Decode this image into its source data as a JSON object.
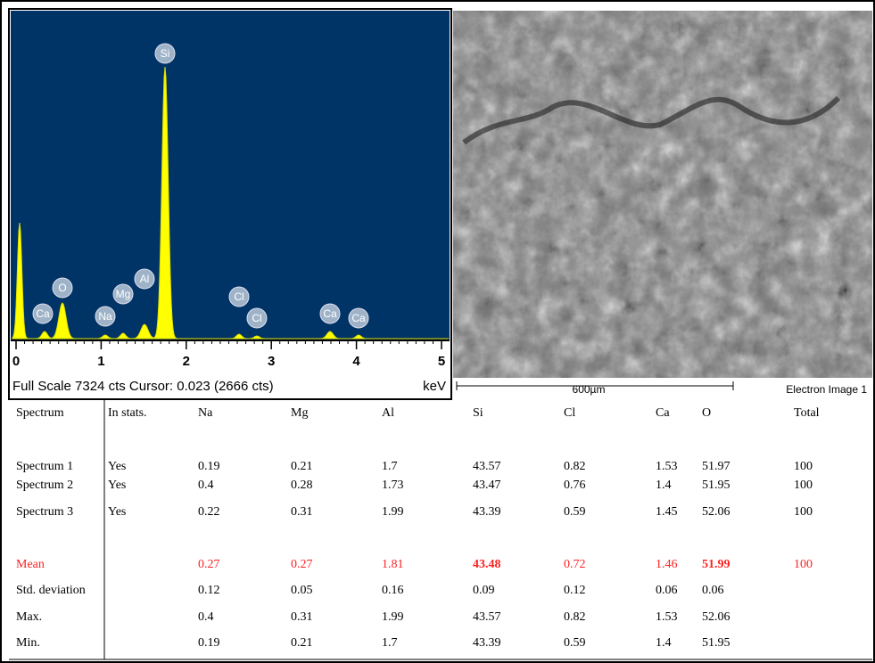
{
  "spectrum": {
    "peak_labels": [
      "Si",
      "O",
      "Ca",
      "Na",
      "Mg",
      "Al",
      "Cl",
      "Cl",
      "Ca",
      "Ca"
    ],
    "xlim": [
      0,
      5
    ],
    "xticks": [
      0,
      1,
      2,
      3,
      4,
      5
    ],
    "footer": "Full Scale 7324 cts Cursor: 0.023  (2666 cts)",
    "unit": "keV"
  },
  "image": {
    "scale_bar": "600µm",
    "caption": "Electron Image 1"
  },
  "table": {
    "header": [
      "Spectrum",
      "In stats.",
      "Na",
      "Mg",
      "Al",
      "Si",
      "Cl",
      "Ca",
      "O",
      "Total"
    ],
    "rows": [
      [
        "Spectrum 1",
        "Yes",
        0.19,
        0.21,
        1.7,
        43.57,
        0.82,
        1.53,
        51.97,
        100
      ],
      [
        "Spectrum 2",
        "Yes",
        0.4,
        0.28,
        1.73,
        43.47,
        0.76,
        1.4,
        51.95,
        100
      ],
      [
        "Spectrum 3",
        "Yes",
        0.22,
        0.31,
        1.99,
        43.39,
        0.59,
        1.45,
        52.06,
        100
      ],
      [
        "Mean",
        null,
        0.27,
        0.27,
        1.81,
        43.48,
        0.72,
        1.46,
        51.99,
        100
      ],
      [
        "Std. deviation",
        null,
        0.12,
        0.05,
        0.16,
        0.09,
        0.12,
        0.06,
        0.06,
        null
      ],
      [
        "Max.",
        null,
        0.4,
        0.31,
        1.99,
        43.57,
        0.82,
        1.53,
        52.06,
        null
      ],
      [
        "Min.",
        null,
        0.19,
        0.21,
        1.7,
        43.39,
        0.59,
        1.4,
        51.95,
        null
      ]
    ]
  }
}
